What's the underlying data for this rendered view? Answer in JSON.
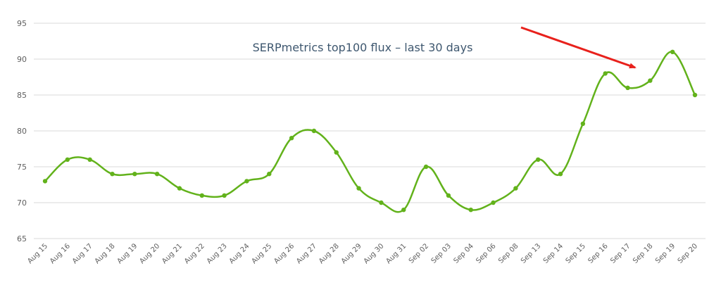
{
  "chart_data": {
    "type": "line",
    "title": "SERPmetrics top100 flux – last 30 days",
    "xlabel": "",
    "ylabel": "",
    "ylim": [
      65,
      95
    ],
    "yticks": [
      65,
      70,
      75,
      80,
      85,
      90,
      95
    ],
    "grid": true,
    "legend": "none",
    "categories": [
      "Aug 15",
      "Aug 16",
      "Aug 17",
      "Aug 18",
      "Aug 19",
      "Aug 20",
      "Aug 21",
      "Aug 22",
      "Aug 23",
      "Aug 24",
      "Aug 25",
      "Aug 26",
      "Aug 27",
      "Aug 28",
      "Aug 29",
      "Aug 30",
      "Aug 31",
      "Sep 02",
      "Sep 03",
      "Sep 04",
      "Sep 06",
      "Sep 08",
      "Sep 13",
      "Sep 14",
      "Sep 15",
      "Sep 16",
      "Sep 17",
      "Sep 18",
      "Sep 19",
      "Sep 20"
    ],
    "series": [
      {
        "values": [
          73,
          76,
          76,
          74,
          74,
          74,
          72,
          71,
          71,
          73,
          74,
          79,
          80,
          77,
          72,
          70,
          69,
          75,
          71,
          69,
          70,
          72,
          76,
          74,
          81,
          88,
          86,
          87,
          91,
          85
        ]
      }
    ],
    "annotations": [
      {
        "type": "arrow",
        "color": "#e8211c",
        "points_to": "Sep 18"
      }
    ],
    "colors": {
      "line": "#62b21b",
      "grid": "#d8d8d8",
      "axis_text": "#606060",
      "title": "#3e576f",
      "arrow": "#e8211c"
    }
  }
}
